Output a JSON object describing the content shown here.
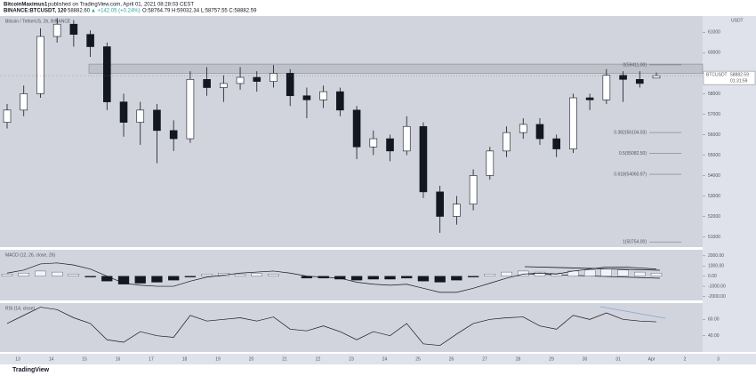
{
  "header": {
    "author": "BitcoinMaximus1",
    "published": "published on TradingView.com, April 01, 2021 08:28:03 CEST",
    "symbol": "BINANCE:BTCUSDT, 120",
    "last": "58882.60",
    "change": "▲ +142.05 (+0.24%)",
    "ohlc": "O:58764.79 H:59032.34 L:58757.55 C:58882.59"
  },
  "footer": {
    "brand": "TradingView"
  },
  "chart_data": [
    {
      "type": "candlestick",
      "title": "Bitcoin / TetherUS, 2h, BINANCE",
      "unit_label": "USDT",
      "x_labels": [
        "13",
        "14",
        "15",
        "16",
        "17",
        "18",
        "19",
        "20",
        "21",
        "22",
        "23",
        "24",
        "25",
        "26",
        "27",
        "28",
        "29",
        "30",
        "31",
        "Apr",
        "2",
        "3"
      ],
      "open": [
        56600,
        57200,
        58000,
        60800,
        61400,
        60900,
        60300,
        57600,
        56600,
        57200,
        56200,
        55800,
        58700,
        58300,
        58500,
        58800,
        58600,
        59000,
        57900,
        57700,
        58100,
        57200,
        55400,
        55800,
        55200,
        56400,
        53200,
        52000,
        52600,
        54000,
        55200,
        56100,
        56500,
        55800,
        55300,
        57800,
        57700,
        58900,
        58700,
        58764.79
      ],
      "high": [
        57500,
        58400,
        61200,
        61700,
        61600,
        61100,
        60500,
        58000,
        57600,
        57500,
        56700,
        59100,
        59300,
        58900,
        59300,
        59100,
        59400,
        59200,
        58300,
        58400,
        58300,
        57400,
        56200,
        56000,
        56900,
        56600,
        53500,
        53000,
        54300,
        55400,
        56400,
        56800,
        56800,
        56000,
        58000,
        58000,
        59200,
        59100,
        59100,
        59032.34
      ],
      "low": [
        56300,
        56900,
        57800,
        60500,
        60300,
        59800,
        57200,
        55900,
        55500,
        54600,
        55200,
        55600,
        57900,
        57600,
        58200,
        58100,
        58300,
        57400,
        56800,
        57300,
        56900,
        54800,
        55000,
        54700,
        55000,
        52900,
        51200,
        51600,
        52300,
        53800,
        54900,
        55800,
        55500,
        54900,
        55100,
        57200,
        57500,
        57600,
        58300,
        58757.55
      ],
      "close": [
        57200,
        58000,
        60800,
        61400,
        60900,
        60300,
        57600,
        56600,
        57200,
        56200,
        55800,
        58700,
        58300,
        58500,
        58800,
        58600,
        59000,
        57900,
        57700,
        58100,
        57200,
        55400,
        55800,
        55200,
        56400,
        53200,
        52000,
        52600,
        54000,
        55200,
        56100,
        56500,
        55800,
        55300,
        57800,
        57700,
        58900,
        58700,
        58500,
        58882.59
      ],
      "up_color": "#ffffff",
      "down_color": "#131722",
      "ylim": [
        50500,
        61800
      ],
      "yticks": [
        51000,
        52000,
        53000,
        54000,
        55000,
        56000,
        57000,
        58000,
        59000,
        60000,
        61000
      ],
      "grid": false,
      "resistance": [
        59000,
        59450
      ],
      "fib_levels": [
        {
          "value": 59411,
          "label": "0(59411.00)"
        },
        {
          "value": 56104.03,
          "label": "0.382(56104.03)"
        },
        {
          "value": 55082.5,
          "label": "0.5(55082.50)"
        },
        {
          "value": 54060.97,
          "label": "0.618(54060.97)"
        },
        {
          "value": 50754,
          "label": "1(50754.00)"
        }
      ],
      "price_tag": {
        "symbol": "BTCUSDT",
        "value": 58882.59,
        "countdown": "01:31:59"
      }
    },
    {
      "type": "macd",
      "title": "MACD (12, 26, close, 26)",
      "histogram": [
        200,
        300,
        500,
        400,
        200,
        -100,
        -500,
        -800,
        -700,
        -600,
        -400,
        -100,
        200,
        300,
        200,
        300,
        200,
        0,
        -200,
        -200,
        -300,
        -400,
        -300,
        -300,
        -200,
        -500,
        -600,
        -400,
        -100,
        200,
        400,
        500,
        400,
        300,
        500,
        600,
        700,
        600,
        400,
        300
      ],
      "line": [
        300,
        600,
        1200,
        1300,
        1100,
        700,
        0,
        -700,
        -900,
        -1000,
        -1000,
        -500,
        -100,
        100,
        300,
        400,
        500,
        300,
        0,
        -100,
        -200,
        -600,
        -800,
        -900,
        -800,
        -1200,
        -1600,
        -1600,
        -1200,
        -700,
        -200,
        200,
        300,
        200,
        500,
        700,
        900,
        900,
        800,
        700
      ],
      "up_color": "#f0f3fa",
      "down_color": "#131722",
      "line_color": "#131722",
      "ylim": [
        -2400,
        2600
      ],
      "yticks": [
        {
          "value": 2000,
          "label": "2000.00"
        },
        {
          "value": 1000,
          "label": "1000.00"
        },
        {
          "value": 0,
          "label": "0.00"
        },
        {
          "value": -1000,
          "label": "-1000.00"
        },
        {
          "value": -2000,
          "label": "-2000.00"
        }
      ]
    },
    {
      "type": "line",
      "title": "RSI (14, close)",
      "values": [
        55,
        65,
        75,
        72,
        62,
        55,
        35,
        32,
        45,
        40,
        38,
        65,
        58,
        60,
        62,
        58,
        63,
        48,
        46,
        52,
        45,
        35,
        45,
        40,
        55,
        30,
        28,
        42,
        55,
        60,
        62,
        63,
        52,
        48,
        65,
        60,
        68,
        60,
        58,
        57
      ],
      "color": "#131722",
      "ylim": [
        20,
        80
      ],
      "yticks": [
        {
          "value": 60,
          "label": "60.00"
        },
        {
          "value": 40,
          "label": "40.00"
        }
      ]
    }
  ]
}
